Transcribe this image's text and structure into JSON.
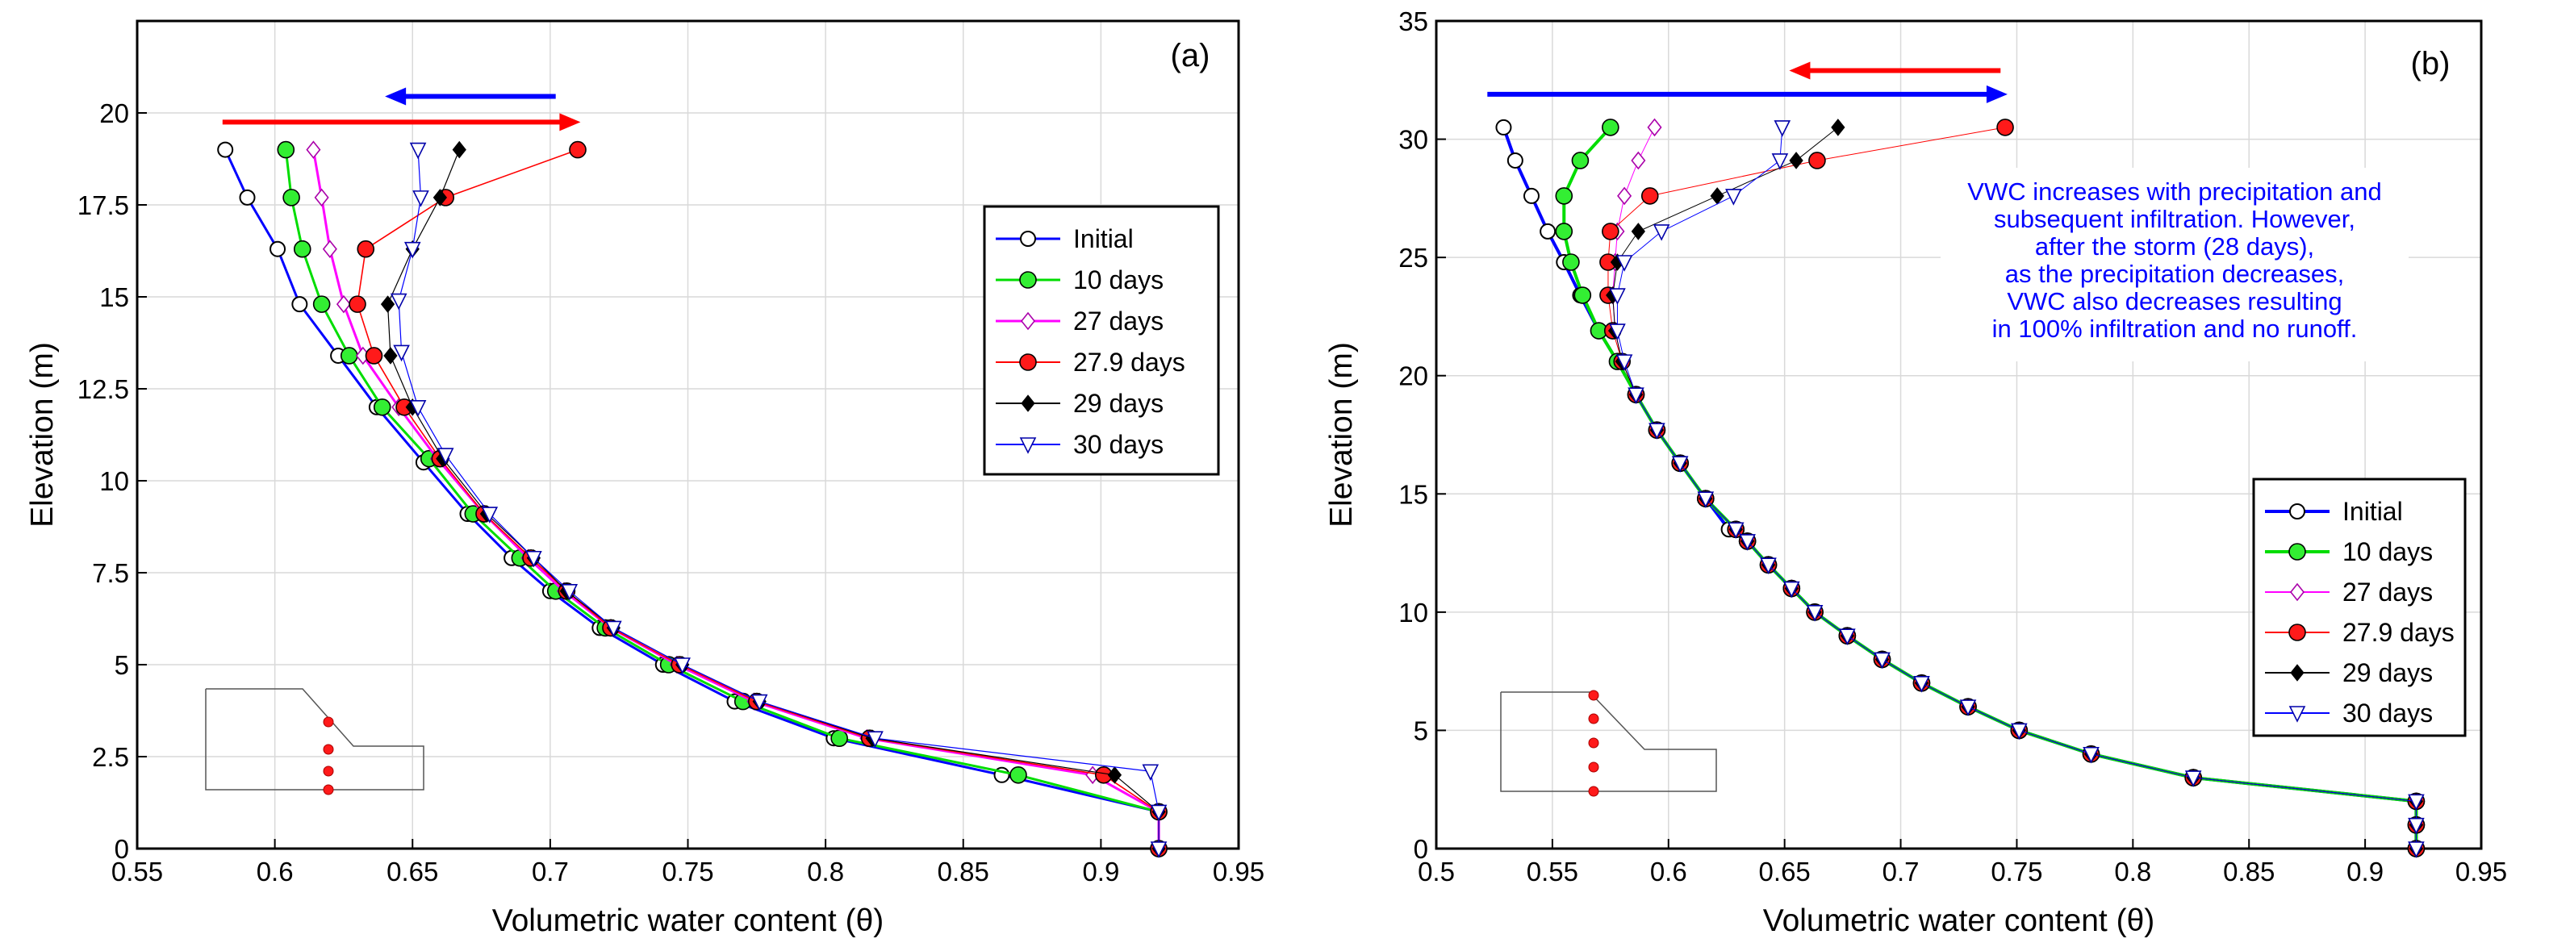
{
  "chart_data": [
    {
      "id": "a",
      "type": "line",
      "panel_label": "(a)",
      "xlabel": "Volumetric water content (θ)",
      "ylabel": "Elevation (m)",
      "xlim": [
        0.55,
        0.95
      ],
      "ylim": [
        0,
        22.5
      ],
      "xticks": [
        0.55,
        0.6,
        0.65,
        0.7,
        0.75,
        0.8,
        0.85,
        0.9,
        0.95
      ],
      "yticks": [
        0,
        2.5,
        5,
        7.5,
        10,
        12.5,
        15,
        17.5,
        20
      ],
      "xtick_labels": [
        "0.55",
        "0.6",
        "0.65",
        "0.7",
        "0.75",
        "0.8",
        "0.85",
        "0.9",
        "0.95"
      ],
      "ytick_labels": [
        "0",
        "2.5",
        "5",
        "7.5",
        "10",
        "12.5",
        "15",
        "17.5",
        "20"
      ],
      "grid": true,
      "legend_position": "right-middle",
      "arrows": [
        {
          "color": "#0000ff",
          "from": [
            0.702,
            20.45
          ],
          "to": [
            0.64,
            20.45
          ]
        },
        {
          "color": "#ff0000",
          "from": [
            0.581,
            19.75
          ],
          "to": [
            0.711,
            19.75
          ]
        }
      ],
      "series": [
        {
          "name": "Initial",
          "color": "#0000ff",
          "marker": "circle-open",
          "width": 3,
          "x": [
            0.921,
            0.921,
            0.864,
            0.803,
            0.767,
            0.741,
            0.718,
            0.7,
            0.686,
            0.67,
            0.654,
            0.637,
            0.623,
            0.609,
            0.601,
            0.59,
            0.582
          ],
          "y": [
            0,
            1,
            2,
            3,
            4,
            5,
            6,
            7,
            7.9,
            9.1,
            10.5,
            12,
            13.4,
            14.8,
            16.3,
            17.7,
            19
          ]
        },
        {
          "name": "10 days",
          "color": "#00dd00",
          "marker": "circle-green",
          "width": 3,
          "x": [
            0.921,
            0.921,
            0.87,
            0.805,
            0.77,
            0.743,
            0.72,
            0.702,
            0.689,
            0.672,
            0.656,
            0.639,
            0.627,
            0.617,
            0.61,
            0.606,
            0.604
          ],
          "y": [
            0,
            1,
            2,
            3,
            4,
            5,
            6,
            7,
            7.9,
            9.1,
            10.6,
            12,
            13.4,
            14.8,
            16.3,
            17.7,
            19
          ]
        },
        {
          "name": "27 days",
          "color": "#ff00ff",
          "marker": "diamond-open",
          "width": 3,
          "x": [
            0.921,
            0.921,
            0.897,
            0.815,
            0.774,
            0.746,
            0.722,
            0.705,
            0.692,
            0.676,
            0.659,
            0.645,
            0.632,
            0.625,
            0.62,
            0.617,
            0.614
          ],
          "y": [
            0,
            1,
            2,
            3,
            4,
            5,
            6,
            7,
            7.9,
            9.1,
            10.6,
            12,
            13.4,
            14.8,
            16.3,
            17.7,
            19
          ]
        },
        {
          "name": "27.9 days",
          "color": "#ff0000",
          "marker": "circle-red",
          "width": 1.6,
          "x": [
            0.921,
            0.921,
            0.901,
            0.816,
            0.775,
            0.747,
            0.722,
            0.706,
            0.693,
            0.676,
            0.66,
            0.647,
            0.636,
            0.63,
            0.633,
            0.662,
            0.71
          ],
          "y": [
            0,
            1,
            2,
            3,
            4,
            5,
            6,
            7,
            7.9,
            9.1,
            10.6,
            12,
            13.4,
            14.8,
            16.3,
            17.7,
            19
          ]
        },
        {
          "name": "29 days",
          "color": "#000000",
          "marker": "diamond-filled",
          "width": 1.2,
          "x": [
            0.921,
            0.921,
            0.905,
            0.817,
            0.776,
            0.748,
            0.723,
            0.706,
            0.694,
            0.677,
            0.661,
            0.65,
            0.642,
            0.641,
            0.65,
            0.66,
            0.667
          ],
          "y": [
            0,
            1,
            2,
            3,
            4,
            5,
            6,
            7,
            7.9,
            9.1,
            10.6,
            12,
            13.4,
            14.8,
            16.3,
            17.7,
            19
          ]
        },
        {
          "name": "30 days",
          "color": "#0000ff",
          "marker": "triangle-down-open",
          "width": 1.2,
          "x": [
            0.921,
            0.921,
            0.918,
            0.818,
            0.776,
            0.748,
            0.723,
            0.707,
            0.694,
            0.678,
            0.662,
            0.652,
            0.646,
            0.645,
            0.65,
            0.653,
            0.652
          ],
          "y": [
            0,
            1,
            2.1,
            3,
            4,
            5,
            6,
            7,
            7.9,
            9.1,
            10.7,
            12,
            13.5,
            14.9,
            16.3,
            17.7,
            19
          ]
        }
      ]
    },
    {
      "id": "b",
      "type": "line",
      "panel_label": "(b)",
      "xlabel": "Volumetric water content (θ)",
      "ylabel": "Elevation (m)",
      "xlim": [
        0.5,
        0.95
      ],
      "ylim": [
        0,
        35
      ],
      "xticks": [
        0.5,
        0.55,
        0.6,
        0.65,
        0.7,
        0.75,
        0.8,
        0.85,
        0.9,
        0.95
      ],
      "yticks": [
        0,
        5,
        10,
        15,
        20,
        25,
        30,
        35
      ],
      "xtick_labels": [
        "0.5",
        "0.55",
        "0.6",
        "0.65",
        "0.7",
        "0.75",
        "0.8",
        "0.85",
        "0.9",
        "0.95"
      ],
      "ytick_labels": [
        "0",
        "5",
        "10",
        "15",
        "20",
        "25",
        "30",
        "35"
      ],
      "grid": true,
      "legend_position": "bottom-right",
      "annotation": [
        "VWC increases with precipitation and",
        "subsequent infiltration. However,",
        "after the storm (28 days),",
        "as the precipitation decreases,",
        "VWC also decreases resulting",
        "in 100% infiltration and no runoff."
      ],
      "annotation_color": "#0000ff",
      "arrows": [
        {
          "color": "#ff0000",
          "from": [
            0.743,
            32.9
          ],
          "to": [
            0.652,
            32.9
          ]
        },
        {
          "color": "#0000ff",
          "from": [
            0.522,
            31.9
          ],
          "to": [
            0.746,
            31.9
          ]
        }
      ],
      "series": [
        {
          "name": "Initial",
          "color": "#0000ff",
          "marker": "circle-open",
          "width": 4,
          "x": [
            0.922,
            0.922,
            0.922,
            0.826,
            0.782,
            0.751,
            0.729,
            0.709,
            0.692,
            0.677,
            0.663,
            0.653,
            0.643,
            0.634,
            0.626,
            0.616,
            0.605,
            0.595,
            0.586,
            0.578,
            0.57,
            0.562,
            0.555,
            0.548,
            0.541,
            0.534,
            0.529
          ],
          "y": [
            0,
            1,
            2,
            3,
            4,
            5,
            6,
            7,
            8,
            9,
            10,
            11,
            12,
            13,
            13.5,
            14.8,
            16.3,
            17.7,
            19.2,
            20.6,
            21.9,
            23.4,
            24.8,
            26.1,
            27.6,
            29.1,
            30.5
          ]
        },
        {
          "name": "10 days",
          "color": "#00dd00",
          "marker": "circle-green",
          "width": 4,
          "x": [
            0.922,
            0.922,
            0.922,
            0.826,
            0.782,
            0.751,
            0.729,
            0.709,
            0.692,
            0.677,
            0.663,
            0.653,
            0.643,
            0.634,
            0.629,
            0.616,
            0.605,
            0.595,
            0.586,
            0.578,
            0.57,
            0.563,
            0.558,
            0.555,
            0.555,
            0.562,
            0.575
          ],
          "y": [
            0,
            1,
            2,
            3,
            4,
            5,
            6,
            7,
            8,
            9,
            10,
            11,
            12,
            13,
            13.5,
            14.8,
            16.3,
            17.7,
            19.2,
            20.6,
            21.9,
            23.4,
            24.8,
            26.1,
            27.6,
            29.1,
            30.5
          ]
        },
        {
          "name": "27 days",
          "color": "#ff00ff",
          "marker": "diamond-open",
          "width": 1,
          "x": [
            0.922,
            0.922,
            0.922,
            0.826,
            0.782,
            0.751,
            0.729,
            0.709,
            0.692,
            0.677,
            0.663,
            0.653,
            0.643,
            0.634,
            0.629,
            0.616,
            0.605,
            0.595,
            0.586,
            0.58,
            0.577,
            0.576,
            0.577,
            0.578,
            0.581,
            0.587,
            0.594
          ],
          "y": [
            0,
            1,
            2,
            3,
            4,
            5,
            6,
            7,
            8,
            9,
            10,
            11,
            12,
            13,
            13.5,
            14.8,
            16.3,
            17.7,
            19.2,
            20.6,
            21.9,
            23.4,
            24.8,
            26.1,
            27.6,
            29.1,
            30.5
          ]
        },
        {
          "name": "27.9 days",
          "color": "#ff0000",
          "marker": "circle-red",
          "width": 1,
          "x": [
            0.922,
            0.922,
            0.922,
            0.826,
            0.782,
            0.751,
            0.729,
            0.709,
            0.692,
            0.677,
            0.663,
            0.653,
            0.643,
            0.634,
            0.629,
            0.616,
            0.605,
            0.595,
            0.586,
            0.58,
            0.576,
            0.574,
            0.574,
            0.575,
            0.592,
            0.664,
            0.745
          ],
          "y": [
            0,
            1,
            2,
            3,
            4,
            5,
            6,
            7,
            8,
            9,
            10,
            11,
            12,
            13,
            13.5,
            14.8,
            16.3,
            17.7,
            19.2,
            20.6,
            21.9,
            23.4,
            24.8,
            26.1,
            27.6,
            29.1,
            30.5
          ]
        },
        {
          "name": "29 days",
          "color": "#000000",
          "marker": "diamond-filled",
          "width": 1,
          "x": [
            0.922,
            0.922,
            0.922,
            0.826,
            0.782,
            0.751,
            0.729,
            0.709,
            0.692,
            0.677,
            0.663,
            0.653,
            0.643,
            0.634,
            0.629,
            0.616,
            0.605,
            0.595,
            0.586,
            0.58,
            0.577,
            0.576,
            0.578,
            0.587,
            0.621,
            0.655,
            0.673
          ],
          "y": [
            0,
            1,
            2,
            3,
            4,
            5,
            6,
            7,
            8,
            9,
            10,
            11,
            12,
            13,
            13.5,
            14.8,
            16.3,
            17.7,
            19.2,
            20.6,
            21.9,
            23.4,
            24.8,
            26.1,
            27.6,
            29.1,
            30.5
          ]
        },
        {
          "name": "30 days",
          "color": "#0000ff",
          "marker": "triangle-down-open",
          "width": 1,
          "x": [
            0.922,
            0.922,
            0.922,
            0.826,
            0.782,
            0.751,
            0.729,
            0.709,
            0.692,
            0.677,
            0.663,
            0.653,
            0.643,
            0.634,
            0.629,
            0.616,
            0.605,
            0.595,
            0.586,
            0.581,
            0.578,
            0.578,
            0.581,
            0.597,
            0.628,
            0.648,
            0.649
          ],
          "y": [
            0,
            1,
            2,
            3,
            4,
            5,
            6,
            7,
            8,
            9,
            10,
            11,
            12,
            13,
            13.5,
            14.8,
            16.3,
            17.7,
            19.2,
            20.6,
            21.9,
            23.4,
            24.8,
            26.1,
            27.6,
            29.1,
            30.5
          ]
        }
      ]
    }
  ]
}
